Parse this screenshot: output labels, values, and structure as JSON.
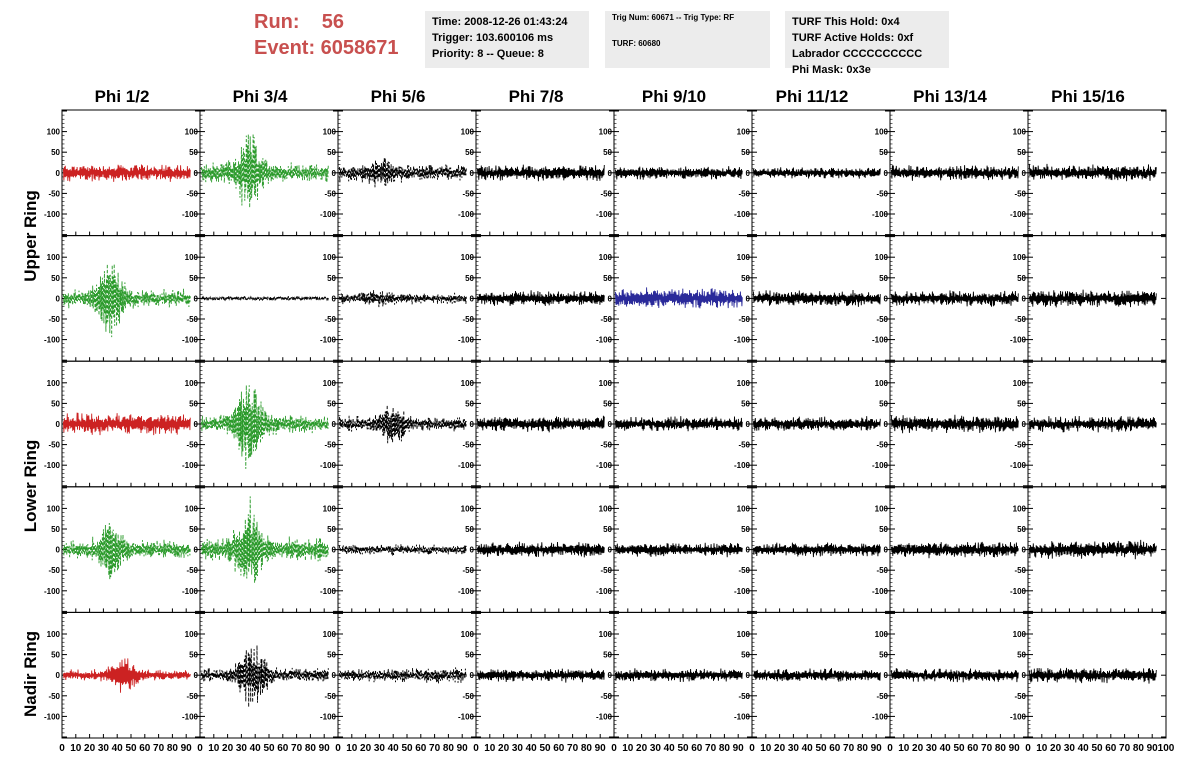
{
  "header": {
    "run_label": "Run:    56",
    "event_label": "Event: 6058671",
    "time": "Time: 2008-12-26 01:43:24",
    "trigger": "Trigger: 103.600106 ms",
    "priority": "Priority: 8 -- Queue: 8",
    "trig_num": "Trig Num: 60671 -- Trig Type: RF",
    "turf": "TURF: 60680",
    "turf_hold": "TURF This Hold: 0x4",
    "turf_active": "TURF Active Holds: 0xf",
    "labrador": "Labrador CCCCCCCCCC",
    "phi_mask": "Phi Mask: 0x3e"
  },
  "columns": [
    "Phi 1/2",
    "Phi 3/4",
    "Phi 5/6",
    "Phi 7/8",
    "Phi 9/10",
    "Phi 11/12",
    "Phi 13/14",
    "Phi 15/16"
  ],
  "row_groups": [
    "Upper Ring",
    "Lower Ring",
    "Nadir Ring"
  ],
  "chart_data": {
    "type": "line",
    "title": "",
    "xlim": [
      0,
      100
    ],
    "ylim": [
      -150,
      150
    ],
    "y_ticks": [
      -150,
      -100,
      -50,
      0,
      50,
      100,
      150
    ],
    "x_ticks": [
      0,
      10,
      20,
      30,
      40,
      50,
      60,
      70,
      80,
      90,
      100
    ],
    "colors": {
      "red": "#cc2222",
      "green": "#2a9a2a",
      "black": "#000000",
      "blue": "#2a2a9a"
    },
    "waveforms": [
      [
        {
          "color": "red",
          "dash": false,
          "amp": 16,
          "burst": 0,
          "center": 0
        },
        {
          "color": "green",
          "dash": true,
          "amp": 18,
          "burst": 95,
          "center": 35
        },
        {
          "color": "black",
          "dash": true,
          "amp": 16,
          "burst": 25,
          "center": 32
        },
        {
          "color": "black",
          "dash": false,
          "amp": 14,
          "burst": 0,
          "center": 0
        },
        {
          "color": "black",
          "dash": false,
          "amp": 12,
          "burst": 0,
          "center": 0
        },
        {
          "color": "black",
          "dash": false,
          "amp": 10,
          "burst": 0,
          "center": 0
        },
        {
          "color": "black",
          "dash": false,
          "amp": 14,
          "burst": 0,
          "center": 0
        },
        {
          "color": "black",
          "dash": false,
          "amp": 15,
          "burst": 0,
          "center": 0
        }
      ],
      [
        {
          "color": "green",
          "dash": true,
          "amp": 16,
          "burst": 95,
          "center": 35
        },
        {
          "color": "black",
          "dash": true,
          "amp": 4,
          "burst": 0,
          "center": 0
        },
        {
          "color": "black",
          "dash": true,
          "amp": 10,
          "burst": 10,
          "center": 30
        },
        {
          "color": "black",
          "dash": false,
          "amp": 14,
          "burst": 0,
          "center": 0
        },
        {
          "color": "blue",
          "dash": false,
          "amp": 18,
          "burst": 0,
          "center": 0
        },
        {
          "color": "black",
          "dash": false,
          "amp": 14,
          "burst": 0,
          "center": 0
        },
        {
          "color": "black",
          "dash": false,
          "amp": 14,
          "burst": 0,
          "center": 0
        },
        {
          "color": "black",
          "dash": false,
          "amp": 16,
          "burst": 0,
          "center": 0
        }
      ],
      [
        {
          "color": "red",
          "dash": false,
          "amp": 20,
          "burst": 0,
          "center": 0
        },
        {
          "color": "green",
          "dash": true,
          "amp": 18,
          "burst": 110,
          "center": 35
        },
        {
          "color": "black",
          "dash": true,
          "amp": 14,
          "burst": 45,
          "center": 40
        },
        {
          "color": "black",
          "dash": false,
          "amp": 14,
          "burst": 0,
          "center": 0
        },
        {
          "color": "black",
          "dash": false,
          "amp": 13,
          "burst": 0,
          "center": 0
        },
        {
          "color": "black",
          "dash": false,
          "amp": 13,
          "burst": 0,
          "center": 0
        },
        {
          "color": "black",
          "dash": false,
          "amp": 16,
          "burst": 0,
          "center": 0
        },
        {
          "color": "black",
          "dash": false,
          "amp": 14,
          "burst": 0,
          "center": 0
        }
      ],
      [
        {
          "color": "green",
          "dash": true,
          "amp": 18,
          "burst": 60,
          "center": 35
        },
        {
          "color": "green",
          "dash": true,
          "amp": 22,
          "burst": 100,
          "center": 35
        },
        {
          "color": "black",
          "dash": true,
          "amp": 10,
          "burst": 0,
          "center": 0
        },
        {
          "color": "black",
          "dash": false,
          "amp": 14,
          "burst": 0,
          "center": 0
        },
        {
          "color": "black",
          "dash": false,
          "amp": 13,
          "burst": 0,
          "center": 0
        },
        {
          "color": "black",
          "dash": false,
          "amp": 13,
          "burst": 0,
          "center": 0
        },
        {
          "color": "black",
          "dash": false,
          "amp": 14,
          "burst": 0,
          "center": 0
        },
        {
          "color": "black",
          "dash": false,
          "amp": 16,
          "burst": 0,
          "center": 0
        }
      ],
      [
        {
          "color": "red",
          "dash": false,
          "amp": 10,
          "burst": 40,
          "center": 45
        },
        {
          "color": "black",
          "dash": true,
          "amp": 14,
          "burst": 80,
          "center": 38
        },
        {
          "color": "black",
          "dash": true,
          "amp": 14,
          "burst": 0,
          "center": 0
        },
        {
          "color": "black",
          "dash": false,
          "amp": 12,
          "burst": 0,
          "center": 0
        },
        {
          "color": "black",
          "dash": false,
          "amp": 12,
          "burst": 0,
          "center": 0
        },
        {
          "color": "black",
          "dash": false,
          "amp": 12,
          "burst": 0,
          "center": 0
        },
        {
          "color": "black",
          "dash": false,
          "amp": 12,
          "burst": 0,
          "center": 0
        },
        {
          "color": "black",
          "dash": false,
          "amp": 14,
          "burst": 0,
          "center": 0
        }
      ]
    ]
  }
}
